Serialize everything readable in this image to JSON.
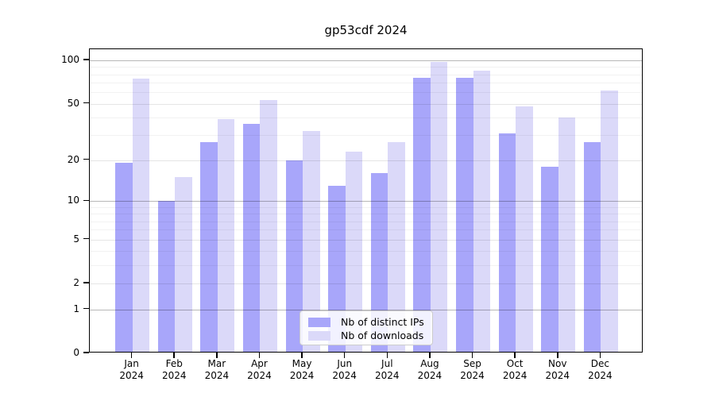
{
  "title": "gp53cdf 2024",
  "chart_data": {
    "type": "bar",
    "title": "gp53cdf 2024",
    "categories": [
      "Jan",
      "Feb",
      "Mar",
      "Apr",
      "May",
      "Jun",
      "Jul",
      "Aug",
      "Sep",
      "Oct",
      "Nov",
      "Dec"
    ],
    "year": "2024",
    "series": [
      {
        "name": "Nb of distinct IPs",
        "color": "#a8a6fa",
        "values": [
          19,
          10,
          27,
          36,
          20,
          13,
          16,
          76,
          76,
          31,
          18,
          27
        ]
      },
      {
        "name": "Nb of downloads",
        "color": "#dbd9f9",
        "values": [
          75,
          15,
          39,
          53,
          32,
          23,
          27,
          97,
          85,
          48,
          40,
          62
        ]
      }
    ],
    "y_scale": "log10(1+x)",
    "y_ticks_major": [
      0,
      1,
      2,
      5,
      10,
      20,
      50,
      100
    ],
    "y_ticks_minor": [
      3,
      4,
      6,
      7,
      8,
      9,
      30,
      40,
      60,
      70,
      80,
      90
    ],
    "ylim": [
      0,
      119
    ],
    "grid": true,
    "legend_position": "bottom-center"
  }
}
